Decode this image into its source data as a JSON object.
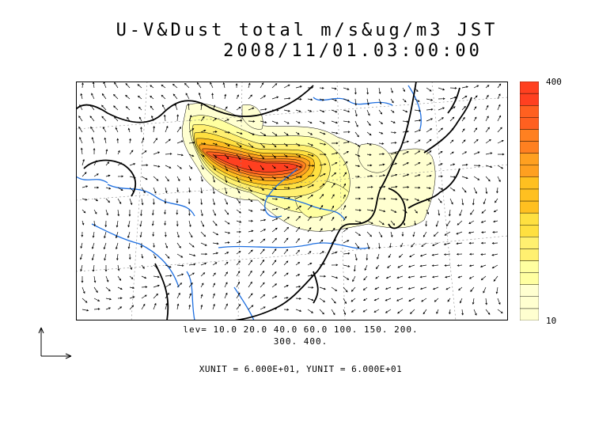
{
  "title": {
    "line1": "U-V&Dust total m/s&ug/m3 JST",
    "line2": "2008/11/01.03:00:00"
  },
  "legend": {
    "max_label": "400",
    "min_label": "10",
    "levels": [
      10,
      20,
      40,
      60,
      100,
      150,
      200,
      300,
      400
    ],
    "colors": [
      "#ffffd0",
      "#ffffa0",
      "#fff070",
      "#ffe040",
      "#ffc020",
      "#ffa020",
      "#ff8020",
      "#ff6020",
      "#ff4020"
    ]
  },
  "contour_levels": {
    "line1": "lev= 10.0 20.0 40.0 60.0 100. 150. 200.",
    "line2": "300. 400."
  },
  "units": {
    "text": "XUNIT = 6.000E+01, YUNIT = 6.000E+01"
  },
  "colors": {
    "coastline": "#000000",
    "rivers": "#1e6fe0",
    "dust_core": "#ff5020",
    "dust_edge": "#ffffc0"
  }
}
